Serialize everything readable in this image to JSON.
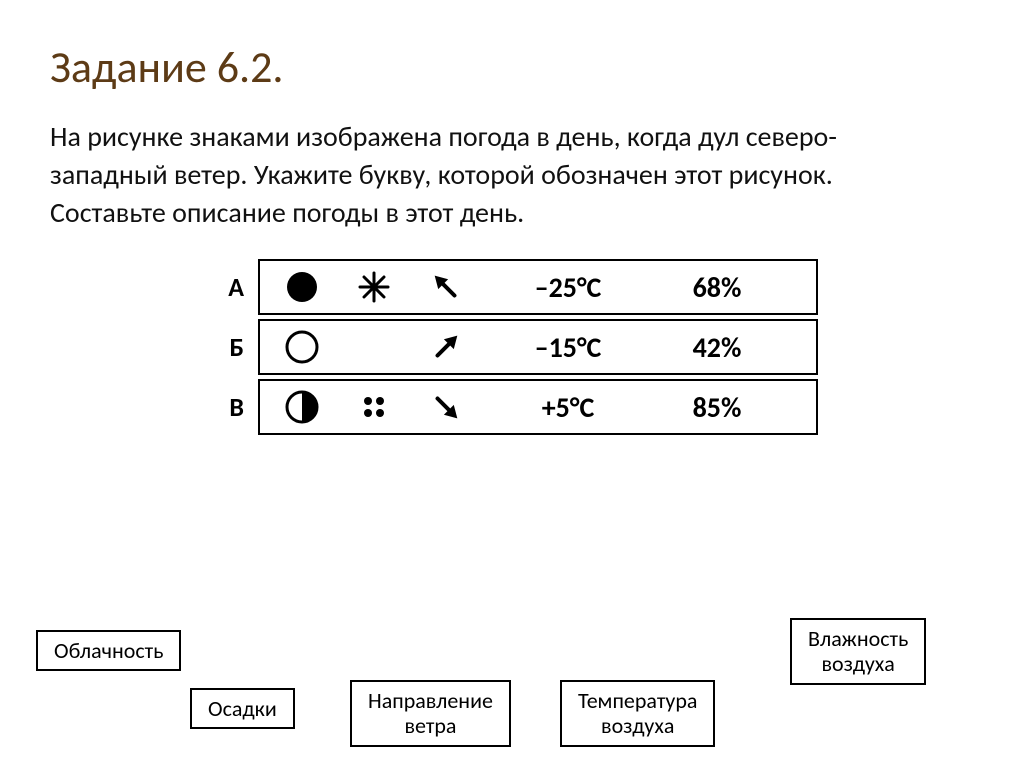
{
  "title": "Задание 6.2.",
  "body_text": "На рисунке знаками изображена погода в день, когда дул северо-западный ветер. Укажите букву, которой обозначен этот рисунок. Составьте описание погоды в этот день.",
  "rows": [
    {
      "label": "А",
      "cloud": "overcast",
      "precip": "snow",
      "wind_deg": -45,
      "temp": "–25°С",
      "humidity": "68%"
    },
    {
      "label": "Б",
      "cloud": "clear",
      "precip": "none",
      "wind_deg": 45,
      "temp": "–15°С",
      "humidity": "42%"
    },
    {
      "label": "В",
      "cloud": "half",
      "precip": "rain",
      "wind_deg": 135,
      "temp": "+5°С",
      "humidity": "85%"
    }
  ],
  "callouts": {
    "cloud": "Облачность",
    "precip": "Осадки",
    "wind": "Направление\nветра",
    "temp": "Температура\nвоздуха",
    "humidity": "Влажность\nвоздуха"
  },
  "style": {
    "title_color": "#5d3b16",
    "title_fontsize": 44,
    "body_fontsize": 28,
    "row_label_fontsize": 26,
    "cell_fontsize": 28,
    "callout_fontsize": 22,
    "border_color": "#000000",
    "background": "#ffffff",
    "icon_stroke": "#000000"
  }
}
